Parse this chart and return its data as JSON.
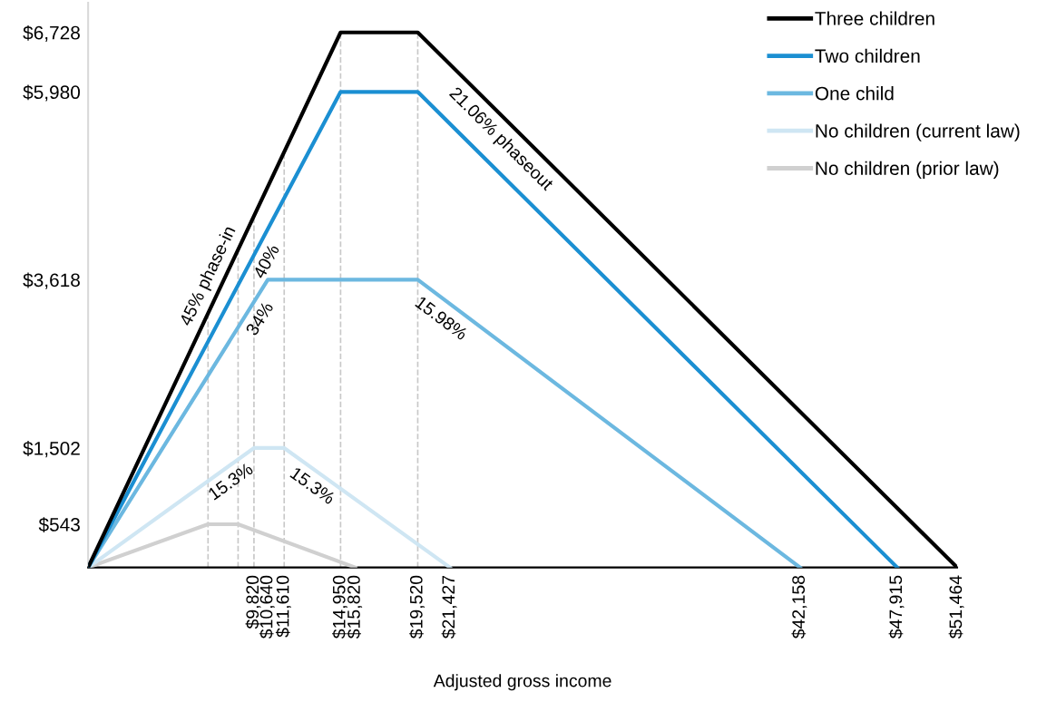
{
  "chart_data": {
    "type": "line",
    "xlabel": "Adjusted gross income",
    "xlim": [
      0,
      51464
    ],
    "ylim": [
      0,
      7100
    ],
    "xticks": [
      {
        "value": 9820,
        "label": "$9,820"
      },
      {
        "value": 10640,
        "label": "$10,640"
      },
      {
        "value": 11610,
        "label": "$11,610"
      },
      {
        "value": 14950,
        "label": "$14,950"
      },
      {
        "value": 15820,
        "label": "$15,820"
      },
      {
        "value": 19520,
        "label": "$19,520"
      },
      {
        "value": 21427,
        "label": "$21,427"
      },
      {
        "value": 42158,
        "label": "$42,158"
      },
      {
        "value": 47915,
        "label": "$47,915"
      },
      {
        "value": 51464,
        "label": "$51,464"
      }
    ],
    "yticks": [
      {
        "value": 543,
        "label": "$543"
      },
      {
        "value": 1502,
        "label": "$1,502"
      },
      {
        "value": 3618,
        "label": "$3,618"
      },
      {
        "value": 5980,
        "label": "$5,980"
      },
      {
        "value": 6728,
        "label": "$6,728"
      }
    ],
    "series": [
      {
        "name": "Three children",
        "color": "#000000",
        "x": [
          0,
          14950,
          19520,
          51464
        ],
        "values": [
          0,
          6728,
          6728,
          0
        ]
      },
      {
        "name": "Two children",
        "color": "#1b8fd2",
        "x": [
          0,
          14950,
          19520,
          47915
        ],
        "values": [
          0,
          5980,
          5980,
          0
        ]
      },
      {
        "name": "One child",
        "color": "#6cb8e0",
        "x": [
          0,
          10640,
          19520,
          42158
        ],
        "values": [
          0,
          3618,
          3618,
          0
        ]
      },
      {
        "name": "No children (current law)",
        "color": "#cfe6f3",
        "x": [
          0,
          9820,
          11610,
          21427
        ],
        "values": [
          0,
          1502,
          1502,
          0
        ]
      },
      {
        "name": "No children (prior law)",
        "color": "#d0d0d0",
        "x": [
          0,
          7100,
          8880,
          15820
        ],
        "values": [
          0,
          543,
          543,
          0
        ]
      }
    ],
    "ref_lines": [
      {
        "axis": "x",
        "value": 7100,
        "color": "#c8c8c8",
        "line_style": "dashed"
      },
      {
        "axis": "x",
        "value": 8880,
        "color": "#c8c8c8",
        "line_style": "dashed"
      },
      {
        "axis": "x",
        "value": 9820,
        "color": "#c8c8c8",
        "line_style": "dashed"
      },
      {
        "axis": "x",
        "value": 11610,
        "color": "#c8c8c8",
        "line_style": "dashed"
      },
      {
        "axis": "x",
        "value": 14950,
        "color": "#c8c8c8",
        "line_style": "dashed"
      },
      {
        "axis": "x",
        "value": 19520,
        "color": "#c8c8c8",
        "line_style": "dashed"
      }
    ],
    "annotations": [
      {
        "text": "45% phase-in",
        "x": 7950,
        "y": 3580
      },
      {
        "text": "40%",
        "x": 9830,
        "y": 3930
      },
      {
        "text": "34%",
        "x": 9460,
        "y": 3220
      },
      {
        "text": "15.3%",
        "x": 7950,
        "y": 1220
      },
      {
        "text": "15.3%",
        "x": 13760,
        "y": 1170
      },
      {
        "text": "21.06% phaseout",
        "x": 25150,
        "y": 5540
      },
      {
        "text": "15.98%",
        "x": 21490,
        "y": 3300
      }
    ],
    "legend": "top right",
    "grid": false,
    "marker": "none",
    "line_style": "solid"
  }
}
